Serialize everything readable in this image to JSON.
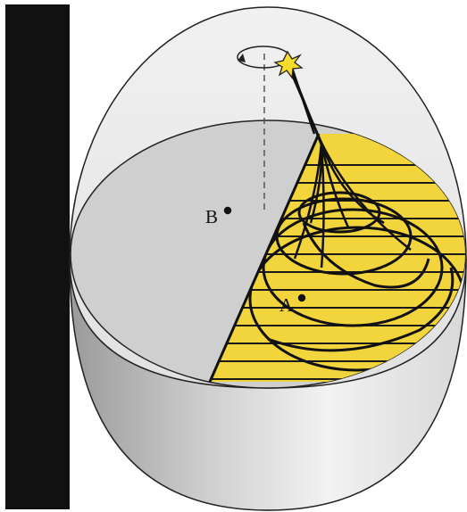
{
  "points": {
    "a": {
      "label": "A"
    },
    "b": {
      "label": "B"
    }
  },
  "colors": {
    "background": "#ffffff",
    "side_bar": "#111111",
    "shell": "#e6e6e6",
    "cut_floor": "#cccccc",
    "illuminated_region": "#f2d43c",
    "trajectory": "#111111",
    "light_source": "#f7dc2a",
    "axis": "#555555"
  },
  "icons": {
    "source": "star-burst-icon",
    "rotation": "circular-arrow-icon"
  }
}
